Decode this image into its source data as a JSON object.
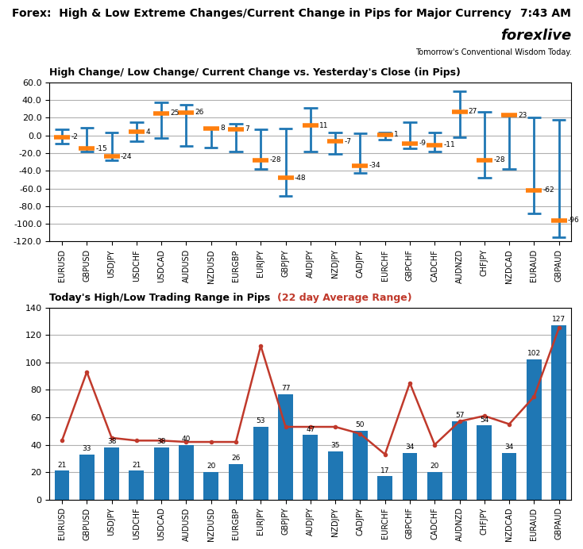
{
  "chart_data": [
    {
      "type": "high_low",
      "title": "High Change/ Low Change/ Current Change vs. Yesterday's Close (in Pips)",
      "annotations": [
        "Forex:  High & Low Extreme Changes/Current Change in Pips for Major Currency",
        "7:43 AM",
        "forexlive",
        "Tomorrow's Conventional Wisdom Today."
      ],
      "categories": [
        "EURUSD",
        "GBPUSD",
        "USDJPY",
        "USDCHF",
        "USDCAD",
        "AUDUSD",
        "NZDUSD",
        "EURGBP",
        "EURJPY",
        "GBPJPY",
        "AUDJPY",
        "NZDJPY",
        "CADJPY",
        "EURCHF",
        "GBPCHF",
        "CADCHF",
        "AUDNZD",
        "CHFJPY",
        "NZDCAD",
        "EURAUD",
        "GBPAUD"
      ],
      "series": [
        {
          "type": "high",
          "values": [
            7,
            9,
            3,
            15,
            37,
            35,
            9,
            13,
            7,
            8,
            31,
            3,
            2,
            3,
            15,
            3,
            50,
            27,
            22,
            20,
            18
          ]
        },
        {
          "type": "low",
          "values": [
            -9,
            -18,
            -28,
            -7,
            -3,
            -12,
            -14,
            -18,
            -38,
            -68,
            -18,
            -21,
            -42,
            -5,
            -15,
            -18,
            -2,
            -48,
            -38,
            -88,
            -115
          ]
        },
        {
          "type": "current",
          "data_labels": true,
          "values": [
            -2,
            -15,
            -24,
            4,
            25,
            26,
            8,
            7,
            -28,
            -48,
            11,
            -7,
            -34,
            1,
            -9,
            -11,
            27,
            -28,
            23,
            -62,
            -96
          ]
        }
      ],
      "ylim": [
        -120,
        60
      ],
      "yticks": [
        {
          "value": -120,
          "label": "-120.0"
        },
        {
          "value": -100,
          "label": "-100.0"
        },
        {
          "value": -80,
          "label": "-80.0"
        },
        {
          "value": -60,
          "label": "-60.0"
        },
        {
          "value": -40,
          "label": "-40.0"
        },
        {
          "value": -20,
          "label": "-20.0"
        },
        {
          "value": 0,
          "label": "0.0"
        },
        {
          "value": 20,
          "label": "20.0"
        },
        {
          "value": 40,
          "label": "40.0"
        },
        {
          "value": 60,
          "label": "60.0"
        }
      ],
      "grid": true
    },
    {
      "type": "bar",
      "title": "Today's High/Low Trading Range in Pips ",
      "subtitle": "(22 day Average Range)",
      "categories": [
        "EURUSD",
        "GBPUSD",
        "USDJPY",
        "USDCHF",
        "USDCAD",
        "AUDUSD",
        "NZDUSD",
        "EURGBP",
        "EURJPY",
        "GBPJPY",
        "AUDJPY",
        "NZDJPY",
        "CADJPY",
        "EURCHF",
        "GBPCHF",
        "CADCHF",
        "AUDNZD",
        "CHFJPY",
        "NZDCAD",
        "EURAUD",
        "GBPAUD"
      ],
      "series": [
        {
          "type": "bar",
          "data_labels": true,
          "values": [
            21,
            33,
            38,
            21,
            38,
            40,
            20,
            26,
            53,
            77,
            47,
            35,
            50,
            17,
            34,
            20,
            57,
            54,
            34,
            102,
            127
          ]
        },
        {
          "type": "line",
          "color": "#C0392B",
          "marker": "o",
          "values": [
            43,
            93,
            45,
            43,
            43,
            42,
            42,
            42,
            112,
            53,
            53,
            53,
            48,
            33,
            85,
            40,
            57,
            61,
            55,
            75,
            125
          ]
        }
      ],
      "ylim": [
        0,
        140
      ],
      "yticks": [
        0,
        20,
        40,
        60,
        80,
        100,
        120,
        140
      ],
      "grid": true
    }
  ]
}
